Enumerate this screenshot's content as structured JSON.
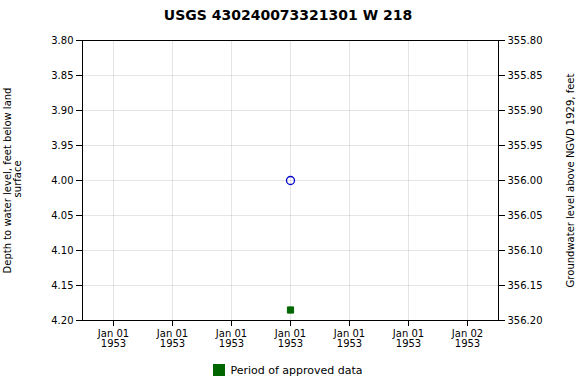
{
  "chart_data": {
    "type": "scatter",
    "title": "USGS 430240073321301 W 218",
    "ylabel": "Depth to water level, feet below land\n surface",
    "y2label": "Groundwater level above NGVD 1929, feet",
    "categories": [
      "Jan 01\n1953",
      "Jan 01\n1953",
      "Jan 01\n1953",
      "Jan 01\n1953",
      "Jan 01\n1953",
      "Jan 01\n1953",
      "Jan 02\n1953"
    ],
    "series": [
      {
        "color": "#0000cc",
        "marker": "circle-open",
        "values": [
          null,
          null,
          null,
          4.0,
          null,
          null,
          null
        ]
      },
      {
        "name": "Period of approved data",
        "color": "#006600",
        "marker": "square",
        "values": [
          null,
          null,
          null,
          4.185,
          null,
          null,
          null
        ]
      }
    ],
    "ylim": [
      4.2,
      3.8
    ],
    "yticks": [
      {
        "value": 3.8,
        "label": "3.80"
      },
      3.85,
      {
        "value": 3.9,
        "label": "3.90"
      },
      3.95,
      {
        "value": 4.0,
        "label": "4.00"
      },
      4.05,
      {
        "value": 4.1,
        "label": "4.10"
      },
      4.15,
      {
        "value": 4.2,
        "label": "4.20"
      }
    ],
    "y2lim": [
      356.2,
      355.8
    ],
    "y2ticks": [
      {
        "value": 355.8,
        "label": "355.80"
      },
      355.85,
      {
        "value": 355.9,
        "label": "355.90"
      },
      355.95,
      {
        "value": 356.0,
        "label": "356.00"
      },
      356.05,
      {
        "value": 356.1,
        "label": "356.10"
      },
      356.15,
      {
        "value": 356.2,
        "label": "356.20"
      }
    ],
    "grid": true,
    "legend": "bottom"
  }
}
